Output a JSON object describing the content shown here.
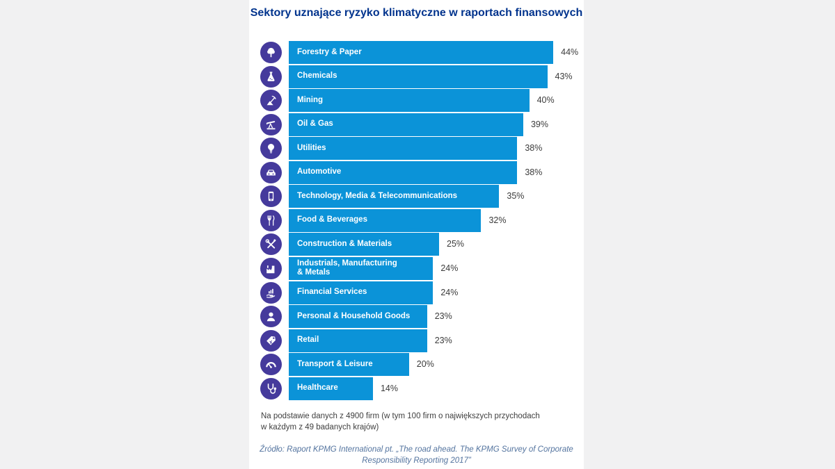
{
  "colors": {
    "page_background": "#f1f1f2",
    "panel_background": "#ffffff",
    "bar_color": "#0b93d8",
    "icon_circle_color": "#453a9c",
    "title_color": "#00338d",
    "value_label_color": "#3b3b3b",
    "source_text_color": "#54749f"
  },
  "chart_data": {
    "type": "bar",
    "orientation": "horizontal",
    "title": "Sektory uznające ryzyko klimatyczne w raportach finansowych",
    "title_lines": "Sektory uznające ryzyko klimatyczne\nw raportach finansowych",
    "unit": "%",
    "xlim": [
      0,
      50
    ],
    "grid": false,
    "legend": "none",
    "categories": [
      "Forestry & Paper",
      "Chemicals",
      "Mining",
      "Oil & Gas",
      "Utilities",
      "Automotive",
      "Technology, Media & Telecommunications",
      "Food & Beverages",
      "Construction & Materials",
      "Industrials, Manufacturing & Metals",
      "Financial Services",
      "Personal & Household Goods",
      "Retail",
      "Transport & Leisure",
      "Healthcare"
    ],
    "values": [
      44,
      43,
      40,
      39,
      38,
      38,
      35,
      32,
      25,
      24,
      24,
      23,
      23,
      20,
      14
    ],
    "bars": [
      {
        "label": "Forestry & Paper",
        "value": 44,
        "value_label": "44%",
        "icon": "tree"
      },
      {
        "label": "Chemicals",
        "value": 43,
        "value_label": "43%",
        "icon": "flask"
      },
      {
        "label": "Mining",
        "value": 40,
        "value_label": "40%",
        "icon": "pickaxe"
      },
      {
        "label": "Oil & Gas",
        "value": 39,
        "value_label": "39%",
        "icon": "oil-pump"
      },
      {
        "label": "Utilities",
        "value": 38,
        "value_label": "38%",
        "icon": "lightbulb"
      },
      {
        "label": "Automotive",
        "value": 38,
        "value_label": "38%",
        "icon": "car"
      },
      {
        "label": "Technology, Media & Telecommunications",
        "value": 35,
        "value_label": "35%",
        "icon": "smartphone"
      },
      {
        "label": "Food & Beverages",
        "value": 32,
        "value_label": "32%",
        "icon": "utensils"
      },
      {
        "label": "Construction & Materials",
        "value": 25,
        "value_label": "25%",
        "icon": "tools"
      },
      {
        "label": "Industrials, Manufacturing\n& Metals",
        "value": 24,
        "value_label": "24%",
        "icon": "factory"
      },
      {
        "label": "Financial Services",
        "value": 24,
        "value_label": "24%",
        "icon": "hand-chart"
      },
      {
        "label": "Personal & Household Goods",
        "value": 23,
        "value_label": "23%",
        "icon": "person"
      },
      {
        "label": "Retail",
        "value": 23,
        "value_label": "23%",
        "icon": "price-tag"
      },
      {
        "label": "Transport & Leisure",
        "value": 20,
        "value_label": "20%",
        "icon": "gauge"
      },
      {
        "label": "Healthcare",
        "value": 14,
        "value_label": "14%",
        "icon": "stethoscope"
      }
    ]
  },
  "footer": {
    "note": "Na podstawie danych z 4900 firm (w tym 100 firm o największych przychodach\nw każdym z 49 badanych krajów)",
    "source": "Źródło: Raport KPMG International pt. „The road ahead. The KPMG Survey of Corporate\nResponsibility Reporting 2017”"
  }
}
